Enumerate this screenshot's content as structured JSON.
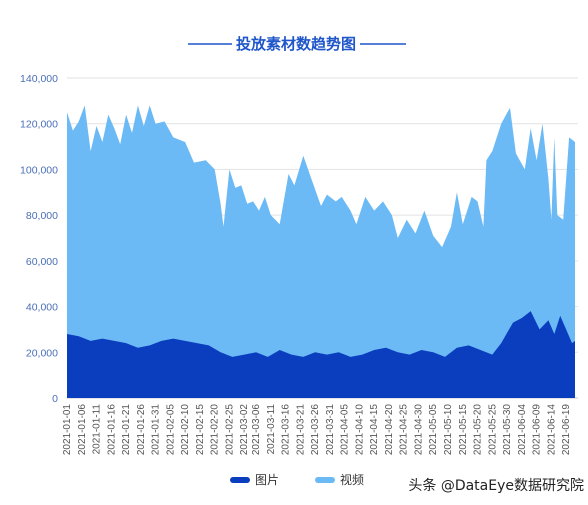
{
  "chart_data": {
    "type": "area",
    "title": "投放素材数趋势图",
    "xlabel": "",
    "ylabel": "",
    "ylim": [
      0,
      140000
    ],
    "yticks": [
      "0",
      "20,000",
      "40,000",
      "60,000",
      "80,000",
      "100,000",
      "120,000",
      "140,000"
    ],
    "grid": true,
    "legend_position": "bottom",
    "x_start": "2021-01-01",
    "x_end": "2021-06-22",
    "x_tick_labels": [
      "2021-01-01",
      "2021-01-06",
      "2021-01-11",
      "2021-01-16",
      "2021-01-21",
      "2021-01-26",
      "2021-01-31",
      "2021-02-05",
      "2021-02-10",
      "2021-02-15",
      "2021-02-20",
      "2021-02-25",
      "2021-03-02",
      "2021-03-06",
      "2021-03-11",
      "2021-03-16",
      "2021-03-21",
      "2021-03-26",
      "2021-03-31",
      "2021-04-05",
      "2021-04-10",
      "2021-04-15",
      "2021-04-20",
      "2021-04-25",
      "2021-04-30",
      "2021-05-05",
      "2021-05-10",
      "2021-05-15",
      "2021-05-20",
      "2021-05-25",
      "2021-05-30",
      "2021-06-04",
      "2021-06-09",
      "2021-06-14",
      "2021-06-19"
    ],
    "series": [
      {
        "name": "视频",
        "color": "#6cbaf5",
        "values": [
          [
            "2021-01-01",
            125000
          ],
          [
            "2021-01-03",
            117000
          ],
          [
            "2021-01-05",
            121000
          ],
          [
            "2021-01-07",
            128000
          ],
          [
            "2021-01-09",
            108000
          ],
          [
            "2021-01-11",
            119000
          ],
          [
            "2021-01-13",
            112000
          ],
          [
            "2021-01-15",
            124000
          ],
          [
            "2021-01-17",
            118000
          ],
          [
            "2021-01-19",
            111000
          ],
          [
            "2021-01-21",
            124000
          ],
          [
            "2021-01-23",
            116000
          ],
          [
            "2021-01-25",
            128000
          ],
          [
            "2021-01-27",
            119000
          ],
          [
            "2021-01-29",
            128000
          ],
          [
            "2021-01-31",
            120000
          ],
          [
            "2021-02-03",
            121000
          ],
          [
            "2021-02-06",
            114000
          ],
          [
            "2021-02-10",
            112000
          ],
          [
            "2021-02-13",
            103000
          ],
          [
            "2021-02-17",
            104000
          ],
          [
            "2021-02-20",
            100000
          ],
          [
            "2021-02-22",
            85000
          ],
          [
            "2021-02-23",
            75000
          ],
          [
            "2021-02-25",
            100000
          ],
          [
            "2021-02-27",
            92000
          ],
          [
            "2021-03-01",
            93000
          ],
          [
            "2021-03-03",
            85000
          ],
          [
            "2021-03-05",
            86000
          ],
          [
            "2021-03-07",
            82000
          ],
          [
            "2021-03-09",
            88000
          ],
          [
            "2021-03-11",
            80000
          ],
          [
            "2021-03-14",
            76000
          ],
          [
            "2021-03-17",
            98000
          ],
          [
            "2021-03-19",
            93000
          ],
          [
            "2021-03-22",
            106000
          ],
          [
            "2021-03-25",
            95000
          ],
          [
            "2021-03-28",
            84000
          ],
          [
            "2021-03-30",
            89000
          ],
          [
            "2021-04-02",
            86000
          ],
          [
            "2021-04-04",
            88000
          ],
          [
            "2021-04-07",
            82000
          ],
          [
            "2021-04-09",
            76000
          ],
          [
            "2021-04-12",
            88000
          ],
          [
            "2021-04-15",
            82000
          ],
          [
            "2021-04-18",
            86000
          ],
          [
            "2021-04-21",
            80000
          ],
          [
            "2021-04-23",
            70000
          ],
          [
            "2021-04-26",
            78000
          ],
          [
            "2021-04-29",
            72000
          ],
          [
            "2021-05-02",
            82000
          ],
          [
            "2021-05-05",
            71000
          ],
          [
            "2021-05-08",
            66000
          ],
          [
            "2021-05-11",
            75000
          ],
          [
            "2021-05-13",
            90000
          ],
          [
            "2021-05-15",
            76000
          ],
          [
            "2021-05-18",
            88000
          ],
          [
            "2021-05-20",
            86000
          ],
          [
            "2021-05-22",
            75000
          ],
          [
            "2021-05-23",
            104000
          ],
          [
            "2021-05-25",
            108000
          ],
          [
            "2021-05-28",
            120000
          ],
          [
            "2021-05-31",
            127000
          ],
          [
            "2021-06-02",
            107000
          ],
          [
            "2021-06-05",
            100000
          ],
          [
            "2021-06-07",
            118000
          ],
          [
            "2021-06-09",
            104000
          ],
          [
            "2021-06-11",
            120000
          ],
          [
            "2021-06-13",
            96000
          ],
          [
            "2021-06-14",
            78000
          ],
          [
            "2021-06-15",
            114000
          ],
          [
            "2021-06-16",
            80000
          ],
          [
            "2021-06-18",
            78000
          ],
          [
            "2021-06-20",
            114000
          ],
          [
            "2021-06-22",
            112000
          ]
        ]
      },
      {
        "name": "图片",
        "color": "#0a3ebf",
        "values": [
          [
            "2021-01-01",
            28000
          ],
          [
            "2021-01-05",
            27000
          ],
          [
            "2021-01-09",
            25000
          ],
          [
            "2021-01-13",
            26000
          ],
          [
            "2021-01-17",
            25000
          ],
          [
            "2021-01-21",
            24000
          ],
          [
            "2021-01-25",
            22000
          ],
          [
            "2021-01-29",
            23000
          ],
          [
            "2021-02-02",
            25000
          ],
          [
            "2021-02-06",
            26000
          ],
          [
            "2021-02-10",
            25000
          ],
          [
            "2021-02-14",
            24000
          ],
          [
            "2021-02-18",
            23000
          ],
          [
            "2021-02-22",
            20000
          ],
          [
            "2021-02-26",
            18000
          ],
          [
            "2021-03-02",
            19000
          ],
          [
            "2021-03-06",
            20000
          ],
          [
            "2021-03-10",
            18000
          ],
          [
            "2021-03-14",
            21000
          ],
          [
            "2021-03-18",
            19000
          ],
          [
            "2021-03-22",
            18000
          ],
          [
            "2021-03-26",
            20000
          ],
          [
            "2021-03-30",
            19000
          ],
          [
            "2021-04-03",
            20000
          ],
          [
            "2021-04-07",
            18000
          ],
          [
            "2021-04-11",
            19000
          ],
          [
            "2021-04-15",
            21000
          ],
          [
            "2021-04-19",
            22000
          ],
          [
            "2021-04-23",
            20000
          ],
          [
            "2021-04-27",
            19000
          ],
          [
            "2021-05-01",
            21000
          ],
          [
            "2021-05-05",
            20000
          ],
          [
            "2021-05-09",
            18000
          ],
          [
            "2021-05-13",
            22000
          ],
          [
            "2021-05-17",
            23000
          ],
          [
            "2021-05-21",
            21000
          ],
          [
            "2021-05-25",
            19000
          ],
          [
            "2021-05-28",
            24000
          ],
          [
            "2021-06-01",
            33000
          ],
          [
            "2021-06-04",
            35000
          ],
          [
            "2021-06-07",
            38000
          ],
          [
            "2021-06-10",
            30000
          ],
          [
            "2021-06-13",
            34000
          ],
          [
            "2021-06-15",
            28000
          ],
          [
            "2021-06-17",
            36000
          ],
          [
            "2021-06-19",
            30000
          ],
          [
            "2021-06-21",
            24000
          ],
          [
            "2021-06-22",
            25000
          ]
        ]
      }
    ]
  },
  "legend": [
    {
      "name": "图片",
      "color": "#0a3ebf"
    },
    {
      "name": "视频",
      "color": "#6cbaf5"
    }
  ],
  "title_color": "#1f56c9",
  "watermark": "头条 @DataEye数据研究院"
}
